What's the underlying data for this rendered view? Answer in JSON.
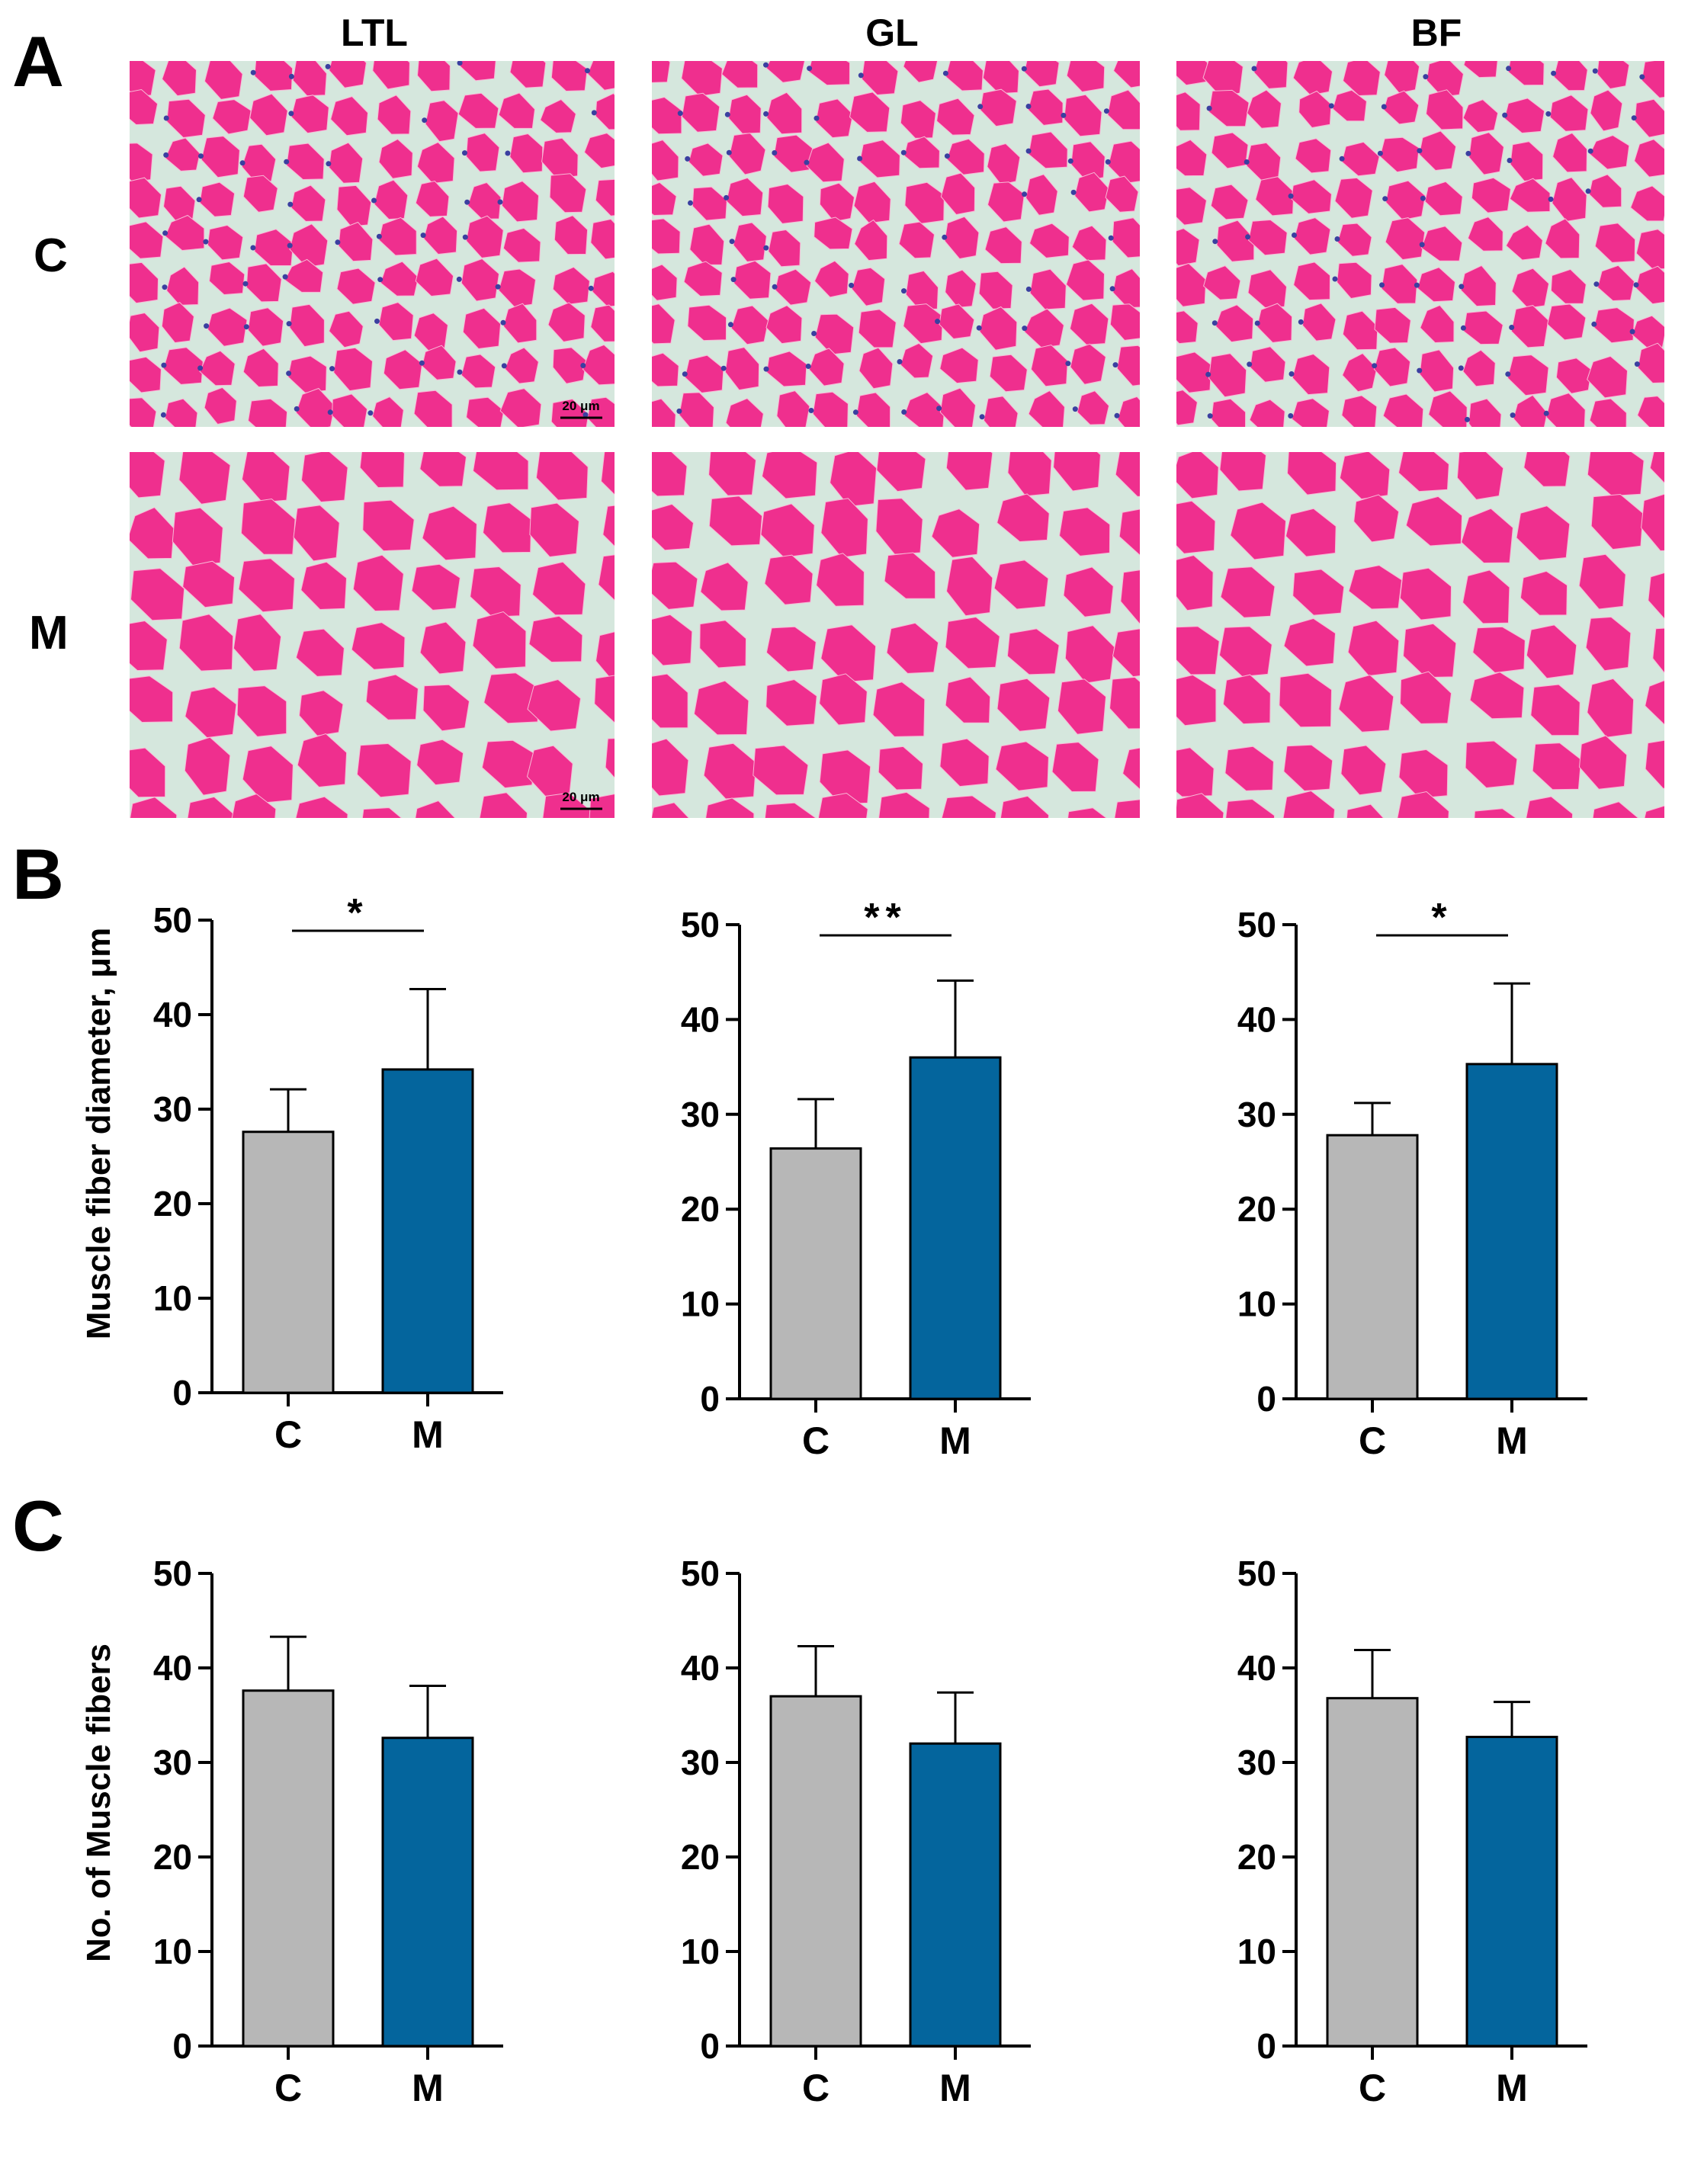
{
  "panels": {
    "a": "A",
    "b": "B",
    "c": "C"
  },
  "columns": [
    "LTL",
    "GL",
    "BF"
  ],
  "rows": [
    "C",
    "M"
  ],
  "scale_bar_label": "20 μm",
  "colors": {
    "control": "#b7b7b7",
    "model": "#04659d",
    "stain": "#ef2f8e",
    "background_tissue": "#d5e7dd",
    "nuclei": "#3b3fa0"
  },
  "panel_b_ylabel": "Muscle fiber diameter, μm",
  "panel_c_ylabel": "No. of Muscle fibers",
  "chart_data": [
    {
      "id": "b-ltl",
      "type": "bar",
      "categories": [
        "C",
        "M"
      ],
      "values": [
        27.6,
        34.2
      ],
      "errors": [
        4.5,
        8.5
      ],
      "ylim": [
        0,
        50
      ],
      "yticks": [
        0,
        10,
        20,
        30,
        40,
        50
      ],
      "significance": "*",
      "ylabel": "Muscle fiber diameter, μm"
    },
    {
      "id": "b-gl",
      "type": "bar",
      "categories": [
        "C",
        "M"
      ],
      "values": [
        26.4,
        36.0
      ],
      "errors": [
        5.2,
        8.1
      ],
      "ylim": [
        0,
        50
      ],
      "yticks": [
        0,
        10,
        20,
        30,
        40,
        50
      ],
      "significance": "**"
    },
    {
      "id": "b-bf",
      "type": "bar",
      "categories": [
        "C",
        "M"
      ],
      "values": [
        27.8,
        35.3
      ],
      "errors": [
        3.4,
        8.5
      ],
      "ylim": [
        0,
        50
      ],
      "yticks": [
        0,
        10,
        20,
        30,
        40,
        50
      ],
      "significance": "*"
    },
    {
      "id": "c-ltl",
      "type": "bar",
      "categories": [
        "C",
        "M"
      ],
      "values": [
        37.6,
        32.6
      ],
      "errors": [
        5.7,
        5.5
      ],
      "ylim": [
        0,
        50
      ],
      "yticks": [
        0,
        10,
        20,
        30,
        40,
        50
      ],
      "significance": "",
      "ylabel": "No. of Muscle fibers"
    },
    {
      "id": "c-gl",
      "type": "bar",
      "categories": [
        "C",
        "M"
      ],
      "values": [
        37.0,
        32.0
      ],
      "errors": [
        5.3,
        5.4
      ],
      "ylim": [
        0,
        50
      ],
      "yticks": [
        0,
        10,
        20,
        30,
        40,
        50
      ],
      "significance": ""
    },
    {
      "id": "c-bf",
      "type": "bar",
      "categories": [
        "C",
        "M"
      ],
      "values": [
        36.8,
        32.7
      ],
      "errors": [
        5.1,
        3.7
      ],
      "ylim": [
        0,
        50
      ],
      "yticks": [
        0,
        10,
        20,
        30,
        40,
        50
      ],
      "significance": ""
    }
  ]
}
